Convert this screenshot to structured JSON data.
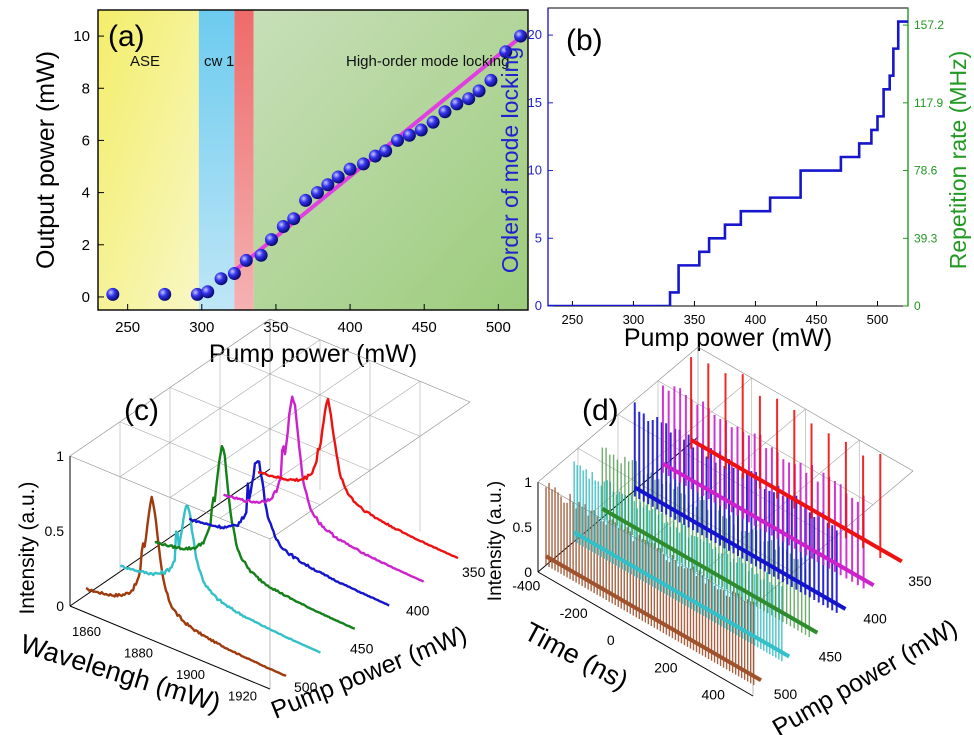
{
  "chart_data": [
    {
      "panel": "(a)",
      "type": "scatter",
      "xlabel": "Pump power (mW)",
      "ylabel": "Output power (mW)",
      "xlim": [
        230,
        520
      ],
      "ylim": [
        -0.5,
        11
      ],
      "xticks": [
        250,
        300,
        350,
        400,
        450,
        500
      ],
      "yticks": [
        0,
        2,
        4,
        6,
        8,
        10
      ],
      "regions": [
        {
          "label": "ASE",
          "from": 230,
          "to": 298,
          "color": "#f7f37a"
        },
        {
          "label": "cw",
          "from": 298,
          "to": 322,
          "color": "#7fd0ef"
        },
        {
          "label": "1",
          "from": 322,
          "to": 335,
          "color": "#ef7d7d"
        },
        {
          "label": "High-order mode locking",
          "from": 335,
          "to": 520,
          "color": "#b9d9a2"
        }
      ],
      "points": {
        "x": [
          240,
          275,
          297,
          304,
          313,
          322,
          330,
          340,
          347,
          355,
          362,
          370,
          378,
          385,
          392,
          400,
          409,
          417,
          424,
          432,
          440,
          448,
          456,
          464,
          472,
          480,
          487,
          495,
          505,
          515
        ],
        "y": [
          0.1,
          0.1,
          0.1,
          0.2,
          0.7,
          0.9,
          1.4,
          1.6,
          2.2,
          2.7,
          3.0,
          3.7,
          4.0,
          4.3,
          4.6,
          4.9,
          5.1,
          5.4,
          5.6,
          6.0,
          6.2,
          6.4,
          6.7,
          7.1,
          7.4,
          7.6,
          7.9,
          8.3,
          9.4,
          10.0
        ]
      },
      "fit": {
        "x": [
          322,
          518
        ],
        "y": [
          1.0,
          10.1
        ],
        "color": "#e040e0"
      },
      "marker_color": "#2222dd"
    },
    {
      "panel": "(b)",
      "type": "line",
      "xlabel": "Pump power (mW)",
      "ylabel": "Order of mode locking",
      "ylabel_right": "Repetition rate (MHz)",
      "xlim": [
        230,
        525
      ],
      "ylim": [
        0,
        22
      ],
      "xticks": [
        250,
        300,
        350,
        400,
        450,
        500
      ],
      "yticks": [
        0,
        5,
        10,
        15,
        20
      ],
      "right_ticks": [
        "0",
        "39.3",
        "78.6",
        "117.9",
        "157.2"
      ],
      "left_color": "#2222cc",
      "right_color": "#229922",
      "steps": {
        "x": [
          230,
          322,
          330,
          337,
          348,
          354,
          362,
          375,
          388,
          400,
          412,
          425,
          437,
          458,
          470,
          485,
          495,
          500,
          505,
          510,
          513,
          517,
          525
        ],
        "y": [
          0,
          0,
          1,
          3,
          3,
          4,
          5,
          6,
          7,
          7,
          8,
          8,
          10,
          10,
          11,
          12,
          13,
          14,
          16,
          17,
          19,
          21,
          21
        ]
      }
    },
    {
      "panel": "(c)",
      "type": "line",
      "xlabel": "Wavelengh (mW)",
      "ylabel": "Intensity (a.u.)",
      "zlabel": "Pump power (mW)",
      "xticks": [
        "1860",
        "1880",
        "1900",
        "1920"
      ],
      "yticks": [
        "0",
        "0.5",
        "1"
      ],
      "zticks": [
        "500",
        "450",
        "400",
        "350"
      ],
      "series": [
        {
          "color": "#9e3a0c",
          "peak": 0.75
        },
        {
          "color": "#33c0c8",
          "peak": 0.55
        },
        {
          "color": "#14801a",
          "peak": 0.78
        },
        {
          "color": "#1414cc",
          "peak": 0.55
        },
        {
          "color": "#cc22cc",
          "peak": 0.8
        },
        {
          "color": "#ee1111",
          "peak": 0.62
        }
      ]
    },
    {
      "panel": "(d)",
      "type": "line",
      "xlabel": "Time (ns)",
      "ylabel": "Intensity (a.u.)",
      "zlabel": "Pump power (mW)",
      "xticks": [
        "-400",
        "-200",
        "0",
        "200",
        "400"
      ],
      "yticks": [
        "0",
        "0.5",
        "1"
      ],
      "zticks": [
        "500",
        "450",
        "400",
        "350"
      ],
      "series": [
        {
          "color": "#a0522d"
        },
        {
          "color": "#33c0c8"
        },
        {
          "color": "#2e8b2e"
        },
        {
          "color": "#1414cc"
        },
        {
          "color": "#cc22cc"
        },
        {
          "color": "#ee1111"
        }
      ]
    }
  ]
}
